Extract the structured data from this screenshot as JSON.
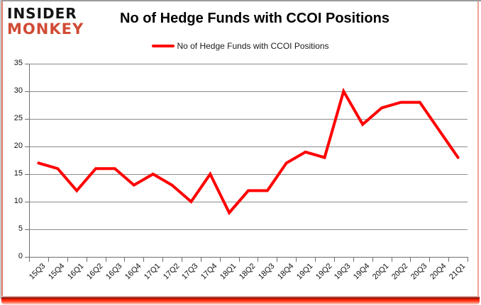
{
  "header": {
    "logo": {
      "line1": "INSIDER",
      "line2": "MONKEY"
    },
    "title": "No of Hedge Funds with CCOI Positions"
  },
  "chart_data": {
    "type": "line",
    "title": "No of Hedge Funds with CCOI Positions",
    "categories": [
      "15Q3",
      "15Q4",
      "16Q1",
      "16Q2",
      "16Q3",
      "16Q4",
      "17Q1",
      "17Q2",
      "17Q3",
      "17Q4",
      "18Q1",
      "18Q2",
      "18Q3",
      "18Q4",
      "19Q1",
      "19Q2",
      "19Q3",
      "19Q4",
      "20Q1",
      "20Q2",
      "20Q3",
      "20Q4",
      "21Q1"
    ],
    "series": [
      {
        "name": "No of Hedge Funds with CCOI Positions",
        "color": "#ff0000",
        "values": [
          17,
          16,
          12,
          16,
          16,
          13,
          15,
          13,
          10,
          15,
          8,
          12,
          12,
          17,
          19,
          18,
          30,
          24,
          27,
          28,
          28,
          23,
          18
        ]
      }
    ],
    "xlabel": "",
    "ylabel": "",
    "ylim": [
      0,
      35
    ],
    "yticks": [
      0,
      5,
      10,
      15,
      20,
      25,
      30,
      35
    ],
    "grid": true,
    "legend_position": "top"
  },
  "colors": {
    "series_line": "#ff0000",
    "gridline": "#8c8c8c",
    "axis": "#6e6e6e",
    "logo_black": "#141414",
    "logo_red": "#d14b35",
    "border_glow": "#fb1e00",
    "frame_gray": "#9a9a9a"
  }
}
